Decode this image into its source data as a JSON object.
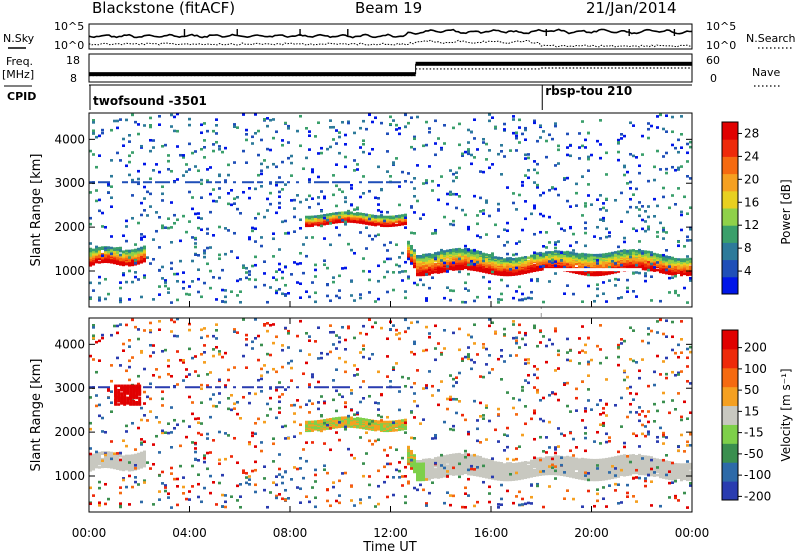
{
  "header": {
    "station": "Blackstone (fitACF)",
    "beam": "Beam 19",
    "date": "21/Jan/2014"
  },
  "sidebar_labels": {
    "nsky": "N.Sky",
    "freq": "Freq.",
    "mhz": "[MHz]",
    "cpid": "CPID",
    "nsearch": "N.Search",
    "nave": "Nave"
  },
  "noise_panel": {
    "left_ticks": [
      "10^5",
      "10^0"
    ],
    "right_ticks": [
      "10^5",
      "10^0"
    ]
  },
  "freq_panel": {
    "left_ticks": [
      "18",
      "8"
    ],
    "right_ticks": [
      "60",
      "0"
    ],
    "freq_values": [
      {
        "start_h": 0,
        "end_h": 13.0,
        "mhz": 10.8
      },
      {
        "start_h": 13.0,
        "end_h": 24,
        "mhz": 14.5
      }
    ],
    "nave_values": [
      {
        "start_h": 0,
        "end_h": 13.0,
        "nave": 14
      },
      {
        "start_h": 13.0,
        "end_h": 18.0,
        "nave": 28
      },
      {
        "start_h": 18.0,
        "end_h": 24,
        "nave": 30
      }
    ]
  },
  "cpid_segments": [
    {
      "label": "twofsound -3501",
      "start_h": 0
    },
    {
      "label": "rbsp-tou 210",
      "start_h": 18.0
    }
  ],
  "x_axis": {
    "label": "Time UT",
    "ticks": [
      "00:00",
      "04:00",
      "08:00",
      "12:00",
      "16:00",
      "20:00",
      "00:00"
    ]
  },
  "chart_data": [
    {
      "type": "heatmap",
      "name": "power",
      "ylabel": "Slant Range [km]",
      "yticks": [
        1000,
        2000,
        3000,
        4000
      ],
      "ylim": [
        180,
        4600
      ],
      "xlim": [
        0,
        24
      ],
      "colorbar": {
        "label": "Power [dB]",
        "ticks": [
          "4",
          "8",
          "12",
          "16",
          "20",
          "24",
          "28"
        ],
        "range": [
          0,
          30
        ],
        "colors": [
          "#0016e8",
          "#1f4fb8",
          "#2d7a9a",
          "#3a9f6b",
          "#8fd14a",
          "#e8d020",
          "#f5a020",
          "#f56a10",
          "#ee2a0a",
          "#e00000"
        ]
      },
      "features": [
        {
          "desc": "ionospheric band",
          "t_range": [
            0,
            2.2
          ],
          "range_km": [
            1000,
            1500
          ],
          "power_db": 24
        },
        {
          "desc": "band",
          "t_range": [
            8.5,
            12.7
          ],
          "range_km": [
            2000,
            2300
          ],
          "power_db": 22
        },
        {
          "desc": "main echo band",
          "t_range": [
            12.6,
            24
          ],
          "range_km": [
            900,
            1500
          ],
          "power_db": 26
        }
      ]
    },
    {
      "type": "heatmap",
      "name": "velocity",
      "ylabel": "Slant Range [km]",
      "yticks": [
        1000,
        2000,
        3000,
        4000
      ],
      "ylim": [
        180,
        4600
      ],
      "xlim": [
        0,
        24
      ],
      "colorbar": {
        "label": "Velocity [m s⁻¹]",
        "ticks": [
          "200",
          "100",
          "50",
          "15",
          "-15",
          "-50",
          "-100",
          "-200"
        ],
        "colors": [
          "#2a3cb0",
          "#2d6aa8",
          "#3a8f4f",
          "#7ed04a",
          "#c8c8c0",
          "#f5a020",
          "#f56a10",
          "#ee2a0a",
          "#e00000"
        ]
      }
    }
  ]
}
